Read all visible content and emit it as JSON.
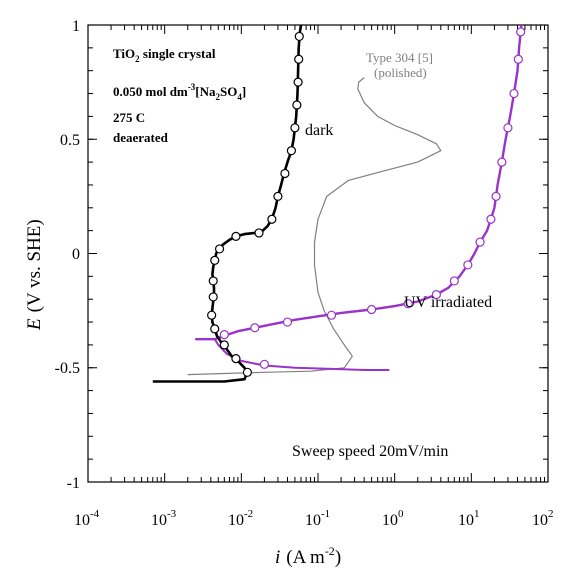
{
  "chart_data": {
    "type": "line",
    "xlabel_italic": "i",
    "xlabel_units": "(A m",
    "xlabel_exp": "-2",
    "xlabel_close": ")",
    "ylabel_italic": "E",
    "ylabel_rest": "(V vs. SHE)",
    "x_scale": "log",
    "xlim": [
      0.0001,
      100
    ],
    "ylim": [
      -1,
      1
    ],
    "x_ticks": [
      {
        "value": 0.0001,
        "base": "10",
        "exp": "-4"
      },
      {
        "value": 0.001,
        "base": "10",
        "exp": "-3"
      },
      {
        "value": 0.01,
        "base": "10",
        "exp": "-2"
      },
      {
        "value": 0.1,
        "base": "10",
        "exp": "-1"
      },
      {
        "value": 1,
        "base": "10",
        "exp": "0"
      },
      {
        "value": 10,
        "base": "10",
        "exp": "1"
      },
      {
        "value": 100,
        "base": "10",
        "exp": "2"
      }
    ],
    "y_ticks": [
      {
        "value": 1,
        "label": "1"
      },
      {
        "value": 0.5,
        "label": "0.5"
      },
      {
        "value": 0,
        "label": "0"
      },
      {
        "value": -0.5,
        "label": "-0.5"
      },
      {
        "value": -1,
        "label": "-1"
      }
    ],
    "legend_box": {
      "line1_a": "TiO",
      "line1_sub": "2",
      "line1_b": " single crystal",
      "line2_a": "0.050 mol dm",
      "line2_sup": "-3",
      "line2_b": "[Na",
      "line2_sub1": "2",
      "line2_c": "SO",
      "line2_sub2": "4",
      "line2_d": "]",
      "line3": "275 C",
      "line4": "deaerated"
    },
    "annotations": {
      "dark": "dark",
      "uv": "UV irradiated",
      "type304_line1": "Type 304 [5]",
      "type304_line2": "(polished)",
      "sweep": "Sweep speed 20mV/min"
    },
    "colors": {
      "dark": "#000000",
      "uv": "#9933cc",
      "type304": "#808080"
    },
    "series": [
      {
        "name": "dark",
        "points": [
          [
            0.0007,
            -0.56
          ],
          [
            0.006,
            -0.56
          ],
          [
            0.011,
            -0.55
          ],
          [
            0.012,
            -0.52
          ],
          [
            0.011,
            -0.5
          ],
          [
            0.009,
            -0.47
          ],
          [
            0.0075,
            -0.45
          ],
          [
            0.0065,
            -0.42
          ],
          [
            0.0055,
            -0.39
          ],
          [
            0.0048,
            -0.36
          ],
          [
            0.0045,
            -0.33
          ],
          [
            0.0042,
            -0.3
          ],
          [
            0.0041,
            -0.27
          ],
          [
            0.0042,
            -0.24
          ],
          [
            0.0043,
            -0.21
          ],
          [
            0.0044,
            -0.18
          ],
          [
            0.0044,
            -0.15
          ],
          [
            0.0043,
            -0.12
          ],
          [
            0.0042,
            -0.09
          ],
          [
            0.0043,
            -0.06
          ],
          [
            0.0045,
            -0.03
          ],
          [
            0.0047,
            0.0
          ],
          [
            0.005,
            0.02
          ],
          [
            0.0058,
            0.04
          ],
          [
            0.007,
            0.06
          ],
          [
            0.0085,
            0.075
          ],
          [
            0.011,
            0.085
          ],
          [
            0.015,
            0.09
          ],
          [
            0.019,
            0.1
          ],
          [
            0.022,
            0.12
          ],
          [
            0.025,
            0.15
          ],
          [
            0.028,
            0.2
          ],
          [
            0.03,
            0.25
          ],
          [
            0.033,
            0.3
          ],
          [
            0.036,
            0.35
          ],
          [
            0.04,
            0.4
          ],
          [
            0.045,
            0.45
          ],
          [
            0.048,
            0.5
          ],
          [
            0.05,
            0.55
          ],
          [
            0.052,
            0.6
          ],
          [
            0.054,
            0.7
          ],
          [
            0.055,
            0.8
          ],
          [
            0.056,
            0.9
          ],
          [
            0.058,
            0.97
          ],
          [
            0.06,
            1.0
          ]
        ],
        "markers": [
          [
            0.012,
            -0.52
          ],
          [
            0.0085,
            -0.46
          ],
          [
            0.006,
            -0.4
          ],
          [
            0.0045,
            -0.33
          ],
          [
            0.0041,
            -0.27
          ],
          [
            0.0043,
            -0.19
          ],
          [
            0.0043,
            -0.12
          ],
          [
            0.0045,
            -0.03
          ],
          [
            0.0052,
            0.02
          ],
          [
            0.0085,
            0.075
          ],
          [
            0.017,
            0.09
          ],
          [
            0.025,
            0.15
          ],
          [
            0.03,
            0.25
          ],
          [
            0.037,
            0.35
          ],
          [
            0.045,
            0.45
          ],
          [
            0.05,
            0.55
          ],
          [
            0.053,
            0.65
          ],
          [
            0.055,
            0.75
          ],
          [
            0.056,
            0.85
          ],
          [
            0.057,
            0.95
          ]
        ]
      },
      {
        "name": "UV irradiated",
        "points": [
          [
            0.0025,
            -0.375
          ],
          [
            0.0045,
            -0.375
          ],
          [
            0.006,
            -0.36
          ],
          [
            0.009,
            -0.34
          ],
          [
            0.015,
            -0.325
          ],
          [
            0.025,
            -0.31
          ],
          [
            0.05,
            -0.29
          ],
          [
            0.1,
            -0.275
          ],
          [
            0.2,
            -0.26
          ],
          [
            0.5,
            -0.245
          ],
          [
            1,
            -0.23
          ],
          [
            2,
            -0.21
          ],
          [
            3.5,
            -0.18
          ],
          [
            5,
            -0.15
          ],
          [
            7,
            -0.1
          ],
          [
            9,
            -0.05
          ],
          [
            11,
            0.0
          ],
          [
            13,
            0.05
          ],
          [
            16,
            0.1
          ],
          [
            18,
            0.15
          ],
          [
            20,
            0.2
          ],
          [
            22,
            0.3
          ],
          [
            25,
            0.4
          ],
          [
            28,
            0.5
          ],
          [
            32,
            0.6
          ],
          [
            36,
            0.7
          ],
          [
            40,
            0.8
          ],
          [
            42,
            0.9
          ],
          [
            45,
            1.0
          ]
        ],
        "lower_branch": [
          [
            0.0045,
            -0.375
          ],
          [
            0.005,
            -0.4
          ],
          [
            0.0065,
            -0.44
          ],
          [
            0.01,
            -0.47
          ],
          [
            0.02,
            -0.49
          ],
          [
            0.05,
            -0.5
          ],
          [
            0.15,
            -0.505
          ],
          [
            0.4,
            -0.51
          ],
          [
            0.85,
            -0.51
          ]
        ],
        "markers": [
          [
            0.02,
            -0.485
          ],
          [
            0.006,
            -0.355
          ],
          [
            0.015,
            -0.325
          ],
          [
            0.04,
            -0.3
          ],
          [
            0.15,
            -0.27
          ],
          [
            0.5,
            -0.245
          ],
          [
            1.5,
            -0.22
          ],
          [
            3.5,
            -0.18
          ],
          [
            6,
            -0.12
          ],
          [
            9,
            -0.05
          ],
          [
            13,
            0.05
          ],
          [
            18,
            0.15
          ],
          [
            21,
            0.25
          ],
          [
            25,
            0.4
          ],
          [
            30,
            0.55
          ],
          [
            36,
            0.7
          ],
          [
            41,
            0.85
          ],
          [
            44,
            0.97
          ]
        ]
      },
      {
        "name": "Type 304",
        "points": [
          [
            0.002,
            -0.53
          ],
          [
            0.006,
            -0.525
          ],
          [
            0.02,
            -0.52
          ],
          [
            0.08,
            -0.515
          ],
          [
            0.22,
            -0.5
          ],
          [
            0.28,
            -0.45
          ],
          [
            0.22,
            -0.4
          ],
          [
            0.16,
            -0.33
          ],
          [
            0.12,
            -0.25
          ],
          [
            0.1,
            -0.17
          ],
          [
            0.09,
            -0.05
          ],
          [
            0.09,
            0.05
          ],
          [
            0.1,
            0.15
          ],
          [
            0.13,
            0.25
          ],
          [
            0.25,
            0.32
          ],
          [
            0.7,
            0.36
          ],
          [
            2,
            0.4
          ],
          [
            4,
            0.45
          ],
          [
            3.5,
            0.48
          ],
          [
            2,
            0.52
          ],
          [
            1,
            0.56
          ],
          [
            0.6,
            0.6
          ],
          [
            0.4,
            0.66
          ],
          [
            0.33,
            0.72
          ],
          [
            0.34,
            0.75
          ],
          [
            0.4,
            0.77
          ]
        ]
      }
    ]
  }
}
